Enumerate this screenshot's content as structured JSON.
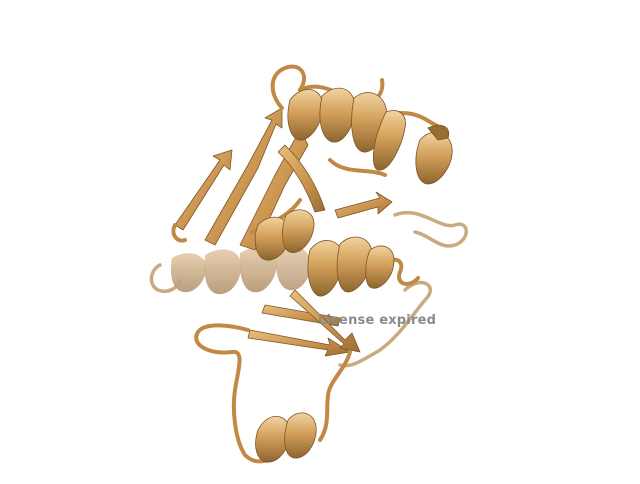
{
  "scene": {
    "background": "#ffffff",
    "ribbon_color": "#d3a05a",
    "ribbon_highlight": "#f1d3a0",
    "ribbon_shadow": "#8e6530",
    "representation": "cartoon"
  },
  "watermark": {
    "text": "License expired",
    "color": "#8a8a8a"
  }
}
